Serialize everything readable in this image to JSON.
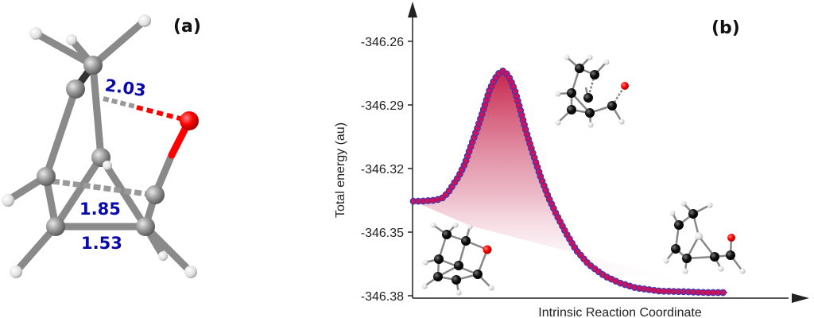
{
  "panel_a": {
    "label": "(a)",
    "bond_labels": [
      "2.03",
      "1.85",
      "1.53"
    ]
  },
  "chart_data": {
    "type": "scatter",
    "panel_label": "(b)",
    "title": "",
    "xlabel": "Intrinsic Reaction Coordinate",
    "ylabel": "Total energy (au)",
    "ylim": [
      -346.381,
      -346.2405
    ],
    "yticks": [
      -346.26,
      -346.29,
      -346.32,
      -346.35,
      -346.38
    ],
    "ytick_labels": [
      "-346.26",
      "-346.29",
      "-346.32",
      "-346.35",
      "-346.38"
    ],
    "x": [
      0,
      2.5,
      6.3,
      8.9,
      10.1,
      11.4,
      12.7,
      14.4,
      16.5,
      18.2,
      20.3,
      22.3,
      24.1,
      25.8,
      27.3,
      28.4,
      29.4,
      30.9,
      32.4,
      34.2,
      35.9,
      38.0,
      40.5,
      43.0,
      45.6,
      48.6,
      51.9,
      55.7,
      60.8,
      65.8,
      70.9,
      78.5,
      86.1,
      93.7,
      100
    ],
    "y": [
      -346.3354,
      -346.3354,
      -346.335,
      -346.3343,
      -346.3328,
      -346.3305,
      -346.3275,
      -346.3238,
      -346.3174,
      -346.3099,
      -346.3013,
      -346.2923,
      -346.2836,
      -346.278,
      -346.275,
      -346.2739,
      -346.2746,
      -346.278,
      -346.2836,
      -346.293,
      -346.3024,
      -346.3125,
      -346.3238,
      -346.3335,
      -346.3418,
      -346.3504,
      -346.3586,
      -346.365,
      -346.3706,
      -346.374,
      -346.3763,
      -346.3778,
      -346.3781,
      -346.3785,
      -346.3785
    ],
    "marker_fill": "#d0105a",
    "marker_edge": "#3a3ab0",
    "fill_color": "#c41840"
  }
}
